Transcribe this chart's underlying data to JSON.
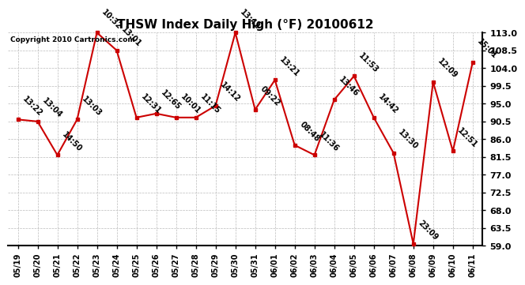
{
  "title": "THSW Index Daily High (°F) 20100612",
  "copyright": "Copyright 2010 Cartronics.com",
  "dates": [
    "05/19",
    "05/20",
    "05/21",
    "05/22",
    "05/23",
    "05/24",
    "05/25",
    "05/26",
    "05/27",
    "05/28",
    "05/29",
    "05/30",
    "05/31",
    "06/01",
    "06/02",
    "06/03",
    "06/04",
    "06/05",
    "06/06",
    "06/07",
    "06/08",
    "06/09",
    "06/10",
    "06/11"
  ],
  "values": [
    91.0,
    90.5,
    82.0,
    91.0,
    113.0,
    108.5,
    91.5,
    92.5,
    91.5,
    91.5,
    94.5,
    113.0,
    93.5,
    101.0,
    84.5,
    82.0,
    96.0,
    102.0,
    91.5,
    82.5,
    59.5,
    100.5,
    83.0,
    105.5
  ],
  "labels": [
    "13:22",
    "13:04",
    "14:50",
    "13:03",
    "10:32",
    "13:01",
    "12:31",
    "12:65",
    "10:01",
    "11:15",
    "14:12",
    "13:42",
    "09:22",
    "13:21",
    "08:48",
    "11:36",
    "13:46",
    "11:53",
    "14:42",
    "13:30",
    "23:09",
    "12:09",
    "12:51",
    "15:01"
  ],
  "ylim_min": 59.0,
  "ylim_max": 113.0,
  "yticks": [
    59.0,
    63.5,
    68.0,
    72.5,
    77.0,
    81.5,
    86.0,
    90.5,
    95.0,
    99.5,
    104.0,
    108.5,
    113.0
  ],
  "line_color": "#cc0000",
  "marker_color": "#cc0000",
  "bg_color": "#ffffff",
  "grid_color": "#bbbbbb",
  "title_fontsize": 11,
  "label_fontsize": 7,
  "copyright_fontsize": 6.5,
  "xtick_fontsize": 7,
  "ytick_fontsize": 8
}
